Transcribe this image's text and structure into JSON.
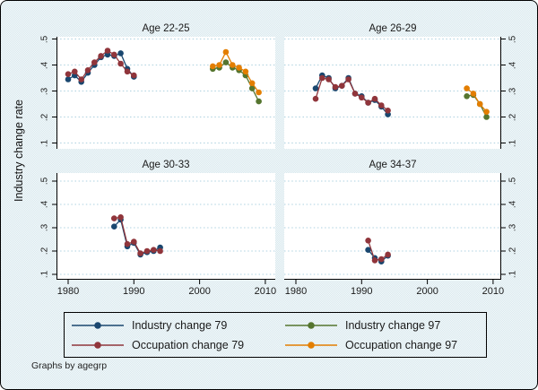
{
  "figure": {
    "ytitle": "Industry change rate",
    "note": "Graphs by agegrp"
  },
  "colors": {
    "industry79": "#1a476f",
    "occupation79": "#90353b",
    "industry97": "#55752f",
    "occupation97": "#e37e00",
    "background": "#eaf2f3",
    "plot_background": "#ffffff",
    "gridline": "#aed2e0",
    "axis": "#000000"
  },
  "axes": {
    "y_tick_labels": [
      ".1",
      ".2",
      ".3",
      ".4",
      ".5"
    ],
    "y_tick_values": [
      0.1,
      0.2,
      0.3,
      0.4,
      0.5
    ],
    "x_tick_labels": [
      "1980",
      "1990",
      "2000",
      "2010"
    ],
    "x_tick_values": [
      1980,
      1990,
      2000,
      2010
    ],
    "grid": true
  },
  "legend": {
    "entries": [
      {
        "key": "industry79",
        "label": "Industry change 79"
      },
      {
        "key": "occupation79",
        "label": "Occupation change 79"
      },
      {
        "key": "industry97",
        "label": "Industry change 97"
      },
      {
        "key": "occupation97",
        "label": "Occupation change 97"
      }
    ],
    "position": "bottom"
  },
  "chart_data": {
    "type": "line",
    "xlim": [
      1978,
      2011.5
    ],
    "ylim": [
      0.075,
      0.51
    ],
    "panels": [
      {
        "title": "Age 22-25",
        "series": [
          {
            "key": "industry79",
            "name": "Industry change 79",
            "x": [
              1980,
              1981,
              1982,
              1983,
              1984,
              1985,
              1986,
              1987,
              1988,
              1989,
              1990
            ],
            "y": [
              0.345,
              0.36,
              0.335,
              0.37,
              0.4,
              0.43,
              0.44,
              0.435,
              0.445,
              0.385,
              0.355
            ]
          },
          {
            "key": "occupation79",
            "name": "Occupation change 79",
            "x": [
              1980,
              1981,
              1982,
              1983,
              1984,
              1985,
              1986,
              1987,
              1988,
              1989,
              1990
            ],
            "y": [
              0.365,
              0.375,
              0.345,
              0.38,
              0.41,
              0.435,
              0.455,
              0.44,
              0.405,
              0.375,
              0.36
            ]
          },
          {
            "key": "industry97",
            "name": "Industry change 97",
            "x": [
              2002,
              2003,
              2004,
              2005,
              2006,
              2007,
              2008,
              2009
            ],
            "y": [
              0.385,
              0.39,
              0.41,
              0.39,
              0.38,
              0.36,
              0.31,
              0.26
            ]
          },
          {
            "key": "occupation97",
            "name": "Occupation change 97",
            "x": [
              2002,
              2003,
              2004,
              2005,
              2006,
              2007,
              2008,
              2009
            ],
            "y": [
              0.395,
              0.4,
              0.45,
              0.4,
              0.39,
              0.375,
              0.33,
              0.295
            ]
          }
        ]
      },
      {
        "title": "Age 26-29",
        "series": [
          {
            "key": "industry79",
            "name": "Industry change 79",
            "x": [
              1983,
              1984,
              1985,
              1986,
              1987,
              1988,
              1989,
              1990,
              1991,
              1992,
              1993,
              1994
            ],
            "y": [
              0.31,
              0.36,
              0.35,
              0.31,
              0.32,
              0.35,
              0.29,
              0.28,
              0.255,
              0.265,
              0.24,
              0.21
            ]
          },
          {
            "key": "occupation79",
            "name": "Occupation change 79",
            "x": [
              1983,
              1984,
              1985,
              1986,
              1987,
              1988,
              1989,
              1990,
              1991,
              1992,
              1993,
              1994
            ],
            "y": [
              0.27,
              0.35,
              0.345,
              0.315,
              0.32,
              0.345,
              0.29,
              0.275,
              0.255,
              0.27,
              0.245,
              0.225
            ]
          },
          {
            "key": "industry97",
            "name": "Industry change 97",
            "x": [
              2006,
              2007,
              2008,
              2009
            ],
            "y": [
              0.28,
              0.285,
              0.25,
              0.2
            ]
          },
          {
            "key": "occupation97",
            "name": "Occupation change 97",
            "x": [
              2006,
              2007,
              2008,
              2009
            ],
            "y": [
              0.31,
              0.29,
              0.25,
              0.22
            ]
          }
        ]
      },
      {
        "title": "Age 30-33",
        "series": [
          {
            "key": "industry79",
            "name": "Industry change 79",
            "x": [
              1987,
              1988,
              1989,
              1990,
              1991,
              1992,
              1993,
              1994
            ],
            "y": [
              0.305,
              0.335,
              0.22,
              0.235,
              0.185,
              0.195,
              0.2,
              0.215
            ]
          },
          {
            "key": "occupation79",
            "name": "Occupation change 79",
            "x": [
              1987,
              1988,
              1989,
              1990,
              1991,
              1992,
              1993,
              1994
            ],
            "y": [
              0.34,
              0.345,
              0.23,
              0.24,
              0.19,
              0.2,
              0.205,
              0.2
            ]
          }
        ]
      },
      {
        "title": "Age 34-37",
        "series": [
          {
            "key": "industry79",
            "name": "Industry change 79",
            "x": [
              1991,
              1992,
              1993,
              1994
            ],
            "y": [
              0.205,
              0.17,
              0.155,
              0.18
            ]
          },
          {
            "key": "occupation79",
            "name": "Occupation change 79",
            "x": [
              1991,
              1992,
              1993,
              1994
            ],
            "y": [
              0.245,
              0.16,
              0.165,
              0.185
            ]
          }
        ]
      }
    ]
  }
}
